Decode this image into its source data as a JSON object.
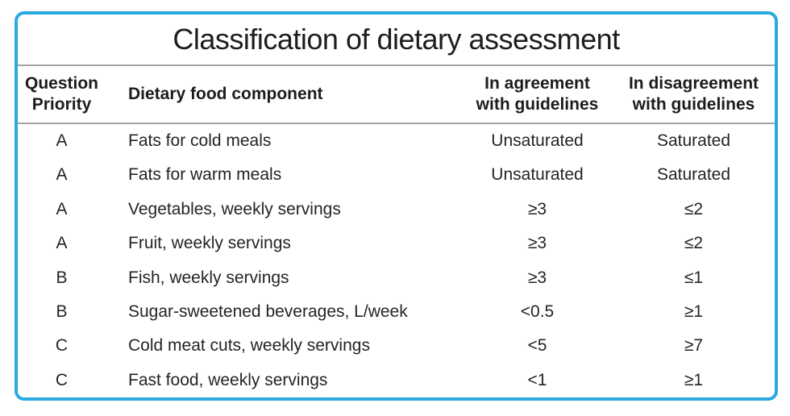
{
  "chart_data": {
    "type": "table",
    "title": "Classification of dietary assessment",
    "columns": [
      {
        "label": "Question Priority",
        "lines": [
          "Question",
          "Priority"
        ]
      },
      {
        "label": "Dietary food component",
        "lines": [
          "Dietary food component"
        ]
      },
      {
        "label": "In agreement with guidelines",
        "lines": [
          "In agreement",
          "with guidelines"
        ]
      },
      {
        "label": "In disagreement with guidelines",
        "lines": [
          "In disagreement",
          "with guidelines"
        ]
      }
    ],
    "rows": [
      [
        "A",
        "Fats for cold meals",
        "Unsaturated",
        "Saturated"
      ],
      [
        "A",
        "Fats for warm meals",
        "Unsaturated",
        "Saturated"
      ],
      [
        "A",
        "Vegetables, weekly servings",
        "≥3",
        "≤2"
      ],
      [
        "A",
        "Fruit, weekly servings",
        "≥3",
        "≤2"
      ],
      [
        "B",
        "Fish, weekly servings",
        "≥3",
        "≤1"
      ],
      [
        "B",
        "Sugar-sweetened beverages, L/week",
        "<0.5",
        "≥1"
      ],
      [
        "C",
        "Cold meat cuts, weekly servings",
        "<5",
        "≥7"
      ],
      [
        "C",
        "Fast food, weekly servings",
        "<1",
        "≥1"
      ]
    ],
    "layout": {
      "grid": "horizontal rules only, no vertical rules",
      "legend_position": "none"
    }
  },
  "colors": {
    "card_border": "#29abe2",
    "divider": "#a3a3a3",
    "text": "#1f1f1f",
    "background": "#ffffff"
  }
}
